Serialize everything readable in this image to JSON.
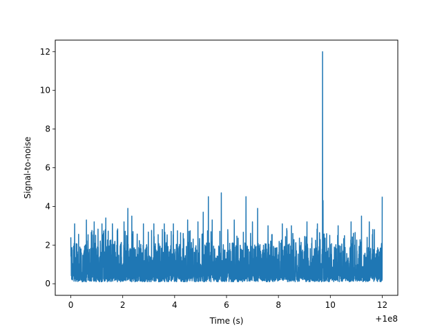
{
  "chart_data": {
    "type": "line",
    "title": "",
    "xlabel": "Time (s)",
    "ylabel": "Signal-to-noise",
    "x_offset_label": "+1e8",
    "xlim": [
      -0.6,
      12.6
    ],
    "ylim": [
      -0.6,
      12.6
    ],
    "x_ticks": [
      0,
      2,
      4,
      6,
      8,
      10,
      12
    ],
    "x_tick_labels": [
      "0",
      "2",
      "4",
      "6",
      "8",
      "10",
      "12"
    ],
    "y_ticks": [
      0,
      2,
      4,
      6,
      8,
      10,
      12
    ],
    "y_tick_labels": [
      "0",
      "2",
      "4",
      "6",
      "8",
      "10",
      "12"
    ],
    "grid": false,
    "legend": "none",
    "series": [
      {
        "color": "#1f77b4",
        "x_range": [
          0,
          12
        ],
        "noise_floor": [
          0.1,
          2.2
        ],
        "peaks": [
          {
            "x": 0.0,
            "y": 2.4
          },
          {
            "x": 0.15,
            "y": 3.1
          },
          {
            "x": 0.6,
            "y": 3.3
          },
          {
            "x": 0.9,
            "y": 3.2
          },
          {
            "x": 1.2,
            "y": 3.1
          },
          {
            "x": 1.35,
            "y": 3.4
          },
          {
            "x": 1.6,
            "y": 3.1
          },
          {
            "x": 2.05,
            "y": 3.2
          },
          {
            "x": 2.2,
            "y": 3.9
          },
          {
            "x": 2.35,
            "y": 3.5
          },
          {
            "x": 2.8,
            "y": 3.1
          },
          {
            "x": 3.2,
            "y": 3.1
          },
          {
            "x": 3.6,
            "y": 3.1
          },
          {
            "x": 3.95,
            "y": 3.1
          },
          {
            "x": 4.5,
            "y": 3.3
          },
          {
            "x": 4.9,
            "y": 3.2
          },
          {
            "x": 5.1,
            "y": 3.7
          },
          {
            "x": 5.3,
            "y": 4.5
          },
          {
            "x": 5.45,
            "y": 3.3
          },
          {
            "x": 5.8,
            "y": 4.7
          },
          {
            "x": 6.3,
            "y": 3.3
          },
          {
            "x": 6.75,
            "y": 4.5
          },
          {
            "x": 7.0,
            "y": 3.2
          },
          {
            "x": 7.2,
            "y": 3.9
          },
          {
            "x": 7.6,
            "y": 3.0
          },
          {
            "x": 8.15,
            "y": 3.1
          },
          {
            "x": 8.5,
            "y": 3.0
          },
          {
            "x": 9.1,
            "y": 3.2
          },
          {
            "x": 9.5,
            "y": 3.1
          },
          {
            "x": 9.7,
            "y": 12.0
          },
          {
            "x": 9.72,
            "y": 4.3
          },
          {
            "x": 10.3,
            "y": 3.0
          },
          {
            "x": 10.8,
            "y": 3.2
          },
          {
            "x": 11.2,
            "y": 3.5
          },
          {
            "x": 11.5,
            "y": 3.2
          },
          {
            "x": 11.7,
            "y": 2.8
          },
          {
            "x": 12.0,
            "y": 4.5
          }
        ]
      }
    ]
  }
}
